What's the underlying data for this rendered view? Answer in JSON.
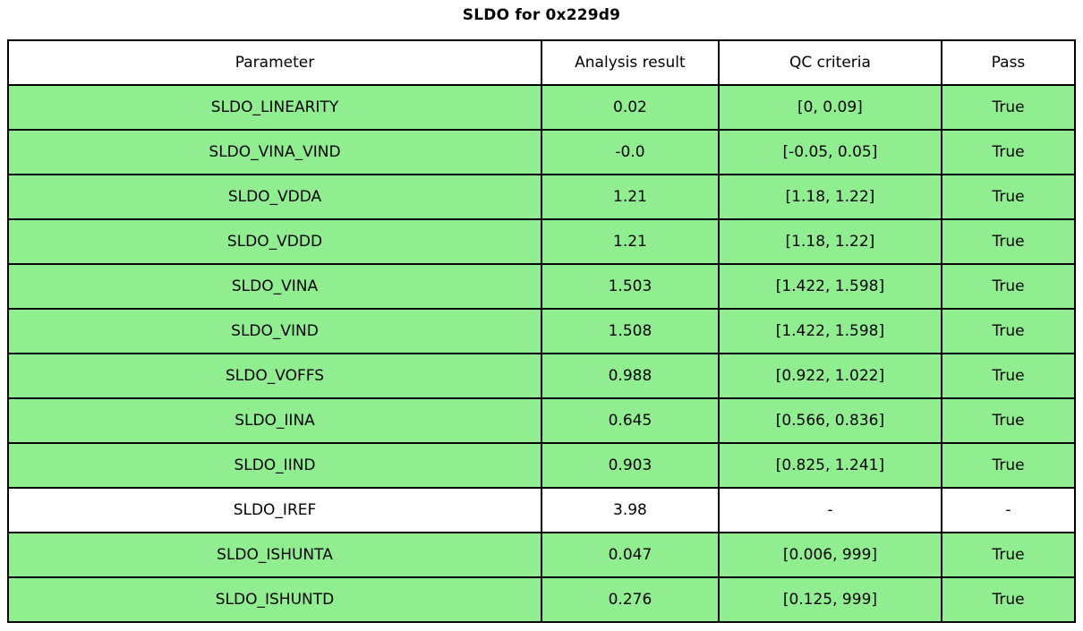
{
  "chart_data": {
    "type": "table",
    "title": "SLDO for 0x229d9",
    "columns": [
      "Parameter",
      "Analysis result",
      "QC criteria",
      "Pass"
    ],
    "rows": [
      {
        "parameter": "SLDO_LINEARITY",
        "result": "0.02",
        "criteria": "[0, 0.09]",
        "pass": "True",
        "highlight": true
      },
      {
        "parameter": "SLDO_VINA_VIND",
        "result": "-0.0",
        "criteria": "[-0.05, 0.05]",
        "pass": "True",
        "highlight": true
      },
      {
        "parameter": "SLDO_VDDA",
        "result": "1.21",
        "criteria": "[1.18, 1.22]",
        "pass": "True",
        "highlight": true
      },
      {
        "parameter": "SLDO_VDDD",
        "result": "1.21",
        "criteria": "[1.18, 1.22]",
        "pass": "True",
        "highlight": true
      },
      {
        "parameter": "SLDO_VINA",
        "result": "1.503",
        "criteria": "[1.422, 1.598]",
        "pass": "True",
        "highlight": true
      },
      {
        "parameter": "SLDO_VIND",
        "result": "1.508",
        "criteria": "[1.422, 1.598]",
        "pass": "True",
        "highlight": true
      },
      {
        "parameter": "SLDO_VOFFS",
        "result": "0.988",
        "criteria": "[0.922, 1.022]",
        "pass": "True",
        "highlight": true
      },
      {
        "parameter": "SLDO_IINA",
        "result": "0.645",
        "criteria": "[0.566, 0.836]",
        "pass": "True",
        "highlight": true
      },
      {
        "parameter": "SLDO_IIND",
        "result": "0.903",
        "criteria": "[0.825, 1.241]",
        "pass": "True",
        "highlight": true
      },
      {
        "parameter": "SLDO_IREF",
        "result": "3.98",
        "criteria": "-",
        "pass": "-",
        "highlight": false
      },
      {
        "parameter": "SLDO_ISHUNTA",
        "result": "0.047",
        "criteria": "[0.006, 999]",
        "pass": "True",
        "highlight": true
      },
      {
        "parameter": "SLDO_ISHUNTD",
        "result": "0.276",
        "criteria": "[0.125, 999]",
        "pass": "True",
        "highlight": true
      }
    ],
    "layout": {
      "legend": "none",
      "grid": "cell-borders",
      "pass_row_color": "#90EE90",
      "neutral_row_color": "#FFFFFF",
      "border_color": "#000000"
    }
  }
}
